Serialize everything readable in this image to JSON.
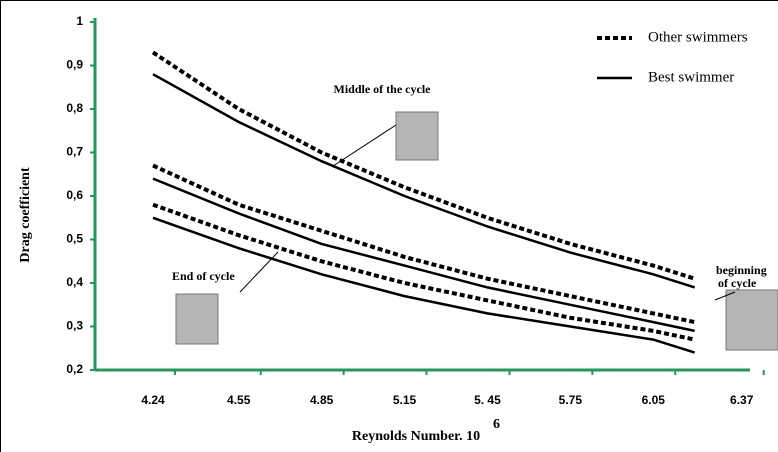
{
  "chart_data": {
    "type": "line",
    "y_label": "Drag coefficient",
    "x_label": "Reynolds Number. 10",
    "x_label_exponent": "6",
    "x": [
      4.24,
      4.55,
      4.85,
      5.15,
      5.45,
      5.75,
      6.05,
      6.2
    ],
    "xlim": [
      4.03,
      6.4
    ],
    "xticks": [
      4.24,
      4.55,
      4.85,
      5.15,
      {
        "value": 5.45,
        "label": "5. 45"
      },
      5.75,
      6.05,
      6.37
    ],
    "ylim": [
      0.2,
      1
    ],
    "yticks": [
      {
        "value": 0.2,
        "label": "0,2"
      },
      {
        "value": 0.3,
        "label": "0,3"
      },
      {
        "value": 0.4,
        "label": "0,4"
      },
      {
        "value": 0.5,
        "label": "0,5"
      },
      {
        "value": 0.6,
        "label": "0,6"
      },
      {
        "value": 0.7,
        "label": "0,7"
      },
      {
        "value": 0.8,
        "label": "0,8"
      },
      {
        "value": 0.9,
        "label": "0,9"
      },
      1
    ],
    "axis_color": "#1f9a5a",
    "series": [
      {
        "name": "Other swimmers",
        "color": "#000000",
        "dashed": true,
        "lines": [
          [
            0.93,
            0.8,
            0.7,
            0.62,
            0.55,
            0.49,
            0.44,
            0.41
          ],
          [
            0.67,
            0.58,
            0.52,
            0.46,
            0.41,
            0.37,
            0.33,
            0.31
          ],
          [
            0.58,
            0.51,
            0.45,
            0.4,
            0.36,
            0.32,
            0.29,
            0.27
          ]
        ]
      },
      {
        "name": "Best swimmer",
        "color": "#000000",
        "dashed": false,
        "lines": [
          [
            0.88,
            0.77,
            0.68,
            0.6,
            0.53,
            0.47,
            0.42,
            0.39
          ],
          [
            0.64,
            0.56,
            0.49,
            0.44,
            0.39,
            0.35,
            0.31,
            0.29
          ],
          [
            0.55,
            0.48,
            0.42,
            0.37,
            0.33,
            0.3,
            0.27,
            0.24
          ]
        ]
      }
    ],
    "annotations": [
      {
        "lines": [
          "Middle of the  cycle"
        ]
      },
      {
        "lines": [
          "End of cycle"
        ]
      },
      {
        "lines": [
          "beginning",
          "of cycle"
        ]
      }
    ]
  }
}
